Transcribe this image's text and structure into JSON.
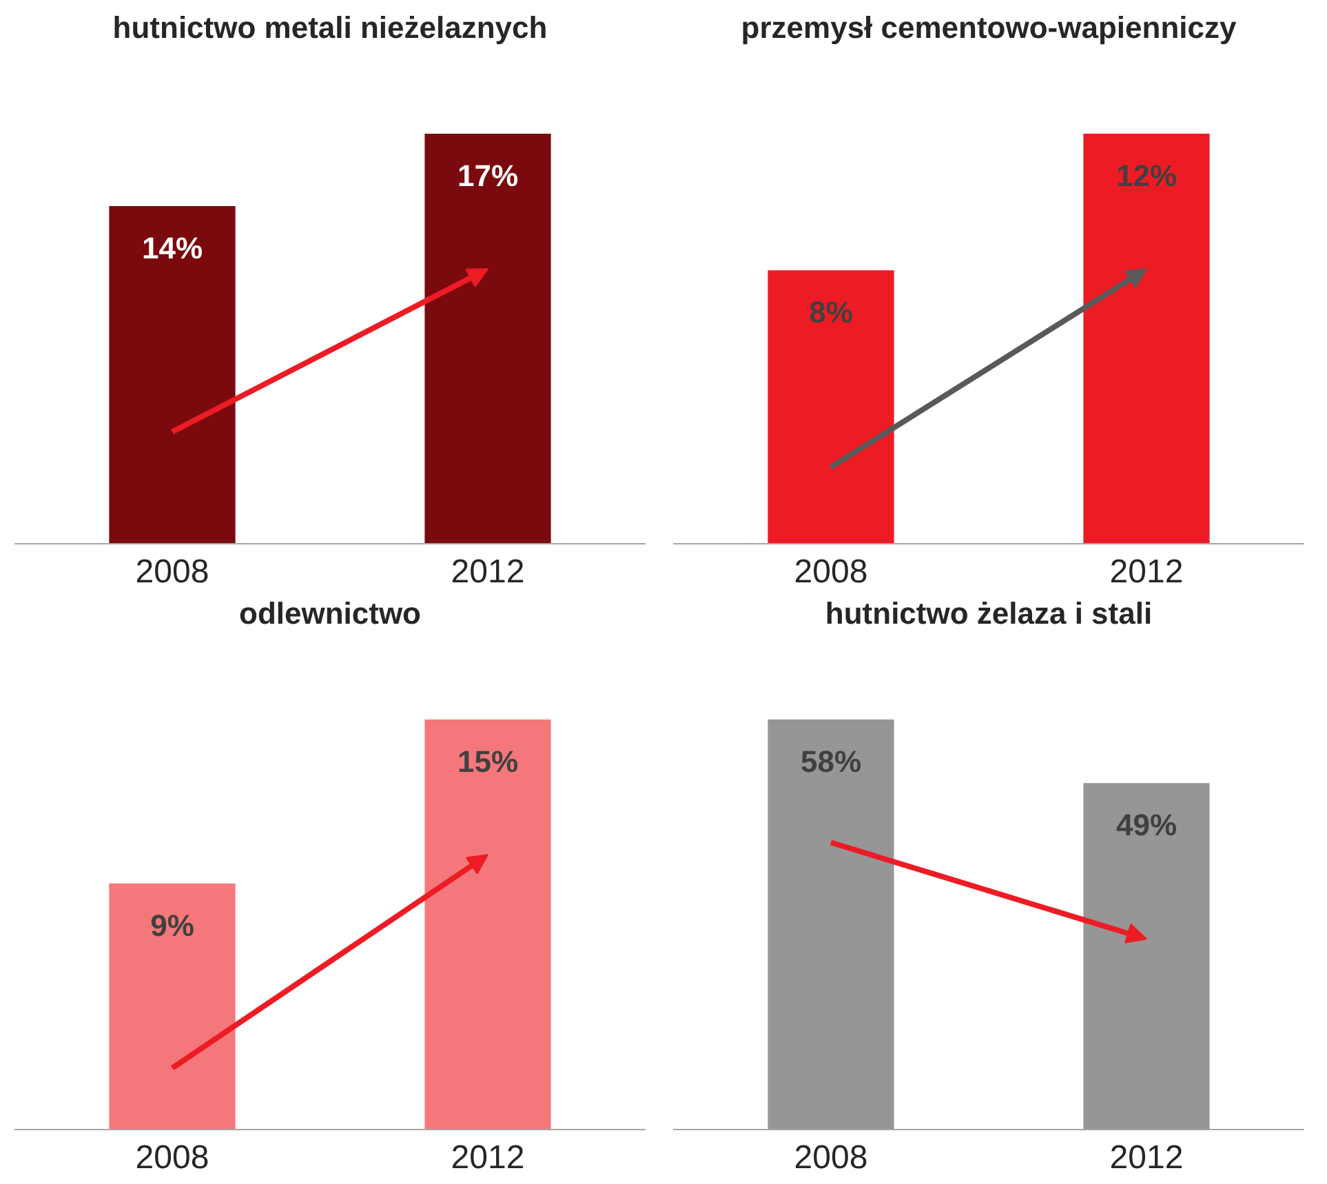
{
  "chart_data": [
    {
      "type": "bar",
      "title": "hutnictwo metali nieżelaznych",
      "categories": [
        "2008",
        "2012"
      ],
      "values": [
        14,
        17
      ],
      "value_labels": [
        "14%",
        "17%"
      ],
      "color": "#7b0a0e",
      "tick_labels": "x",
      "grid": false
    },
    {
      "type": "bar",
      "title": "przemysł cementowo-wapienniczy",
      "categories": [
        "2008",
        "2012"
      ],
      "values": [
        8,
        12
      ],
      "value_labels": [
        "8%",
        "12%"
      ],
      "color": "#ed1c24",
      "tick_labels": "x",
      "grid": false
    },
    {
      "type": "bar",
      "title": "odlewnictwo",
      "categories": [
        "2008",
        "2012"
      ],
      "values": [
        9,
        15
      ],
      "value_labels": [
        "9%",
        "15%"
      ],
      "color": "#f4787b",
      "tick_labels": "x",
      "grid": false
    },
    {
      "type": "bar",
      "title": "hutnictwo żelaza i stali",
      "categories": [
        "2008",
        "2012"
      ],
      "values": [
        58,
        49
      ],
      "value_labels": [
        "58%",
        "49%"
      ],
      "color": "#969696",
      "tick_labels": "x",
      "grid": false
    }
  ]
}
